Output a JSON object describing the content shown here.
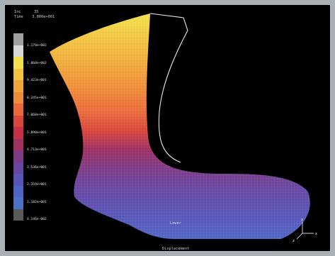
{
  "header": {
    "frame_label": "Inc",
    "frame_value": "35",
    "time_label": "Time",
    "time_value": "3.000e+001"
  },
  "legend": {
    "colors": [
      "#a0a0a0",
      "#d8d8d8",
      "#f2e04a",
      "#f1c341",
      "#f0a53b",
      "#ef8a38",
      "#e9683a",
      "#d8463c",
      "#c43048",
      "#a03060",
      "#7f3a84",
      "#6747a4",
      "#5756b7",
      "#4f65c4",
      "#4c72c8",
      "#5a5a5a"
    ],
    "ticks": [
      "1.178e+002",
      "1.060e+002",
      "9.423e+001",
      "8.245e+001",
      "7.068e+001",
      "5.890e+001",
      "4.713e+001",
      "3.536e+001",
      "2.359e+001",
      "1.182e+001",
      "4.146e-002"
    ]
  },
  "footer": {
    "view_label": "Lower",
    "result_label": "Displacement"
  },
  "triad": {
    "x_label": "x",
    "y_label": "y",
    "z_label": "z"
  }
}
